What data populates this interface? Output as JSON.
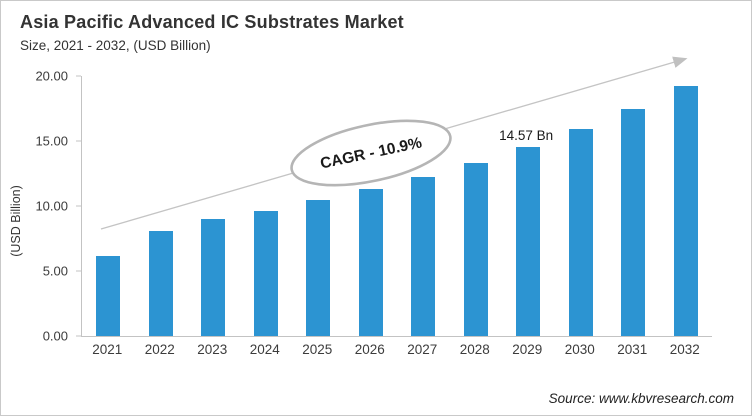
{
  "header": {
    "title": "Asia Pacific Advanced IC Substrates Market",
    "subtitle": "Size, 2021 - 2032, (USD Billion)"
  },
  "annotations": {
    "cagr": "CAGR - 10.9%"
  },
  "source": "Source: www.kbvresearch.com",
  "colors": {
    "bar": "#2C94D2",
    "axis": "#c3c3c3",
    "arrow": "#c4c4c4",
    "ellipse_stroke": "#b5b5b5",
    "text_dark": "#333333"
  },
  "chart_data": {
    "type": "bar",
    "title": "Asia Pacific Advanced IC Substrates Market Size, 2021 - 2032, (USD Billion)",
    "categories": [
      "2021",
      "2022",
      "2023",
      "2024",
      "2025",
      "2026",
      "2027",
      "2028",
      "2029",
      "2030",
      "2031",
      "2032"
    ],
    "values": [
      6.15,
      8.04,
      9.0,
      9.63,
      10.44,
      11.31,
      12.2,
      13.28,
      14.57,
      15.89,
      17.48,
      19.26
    ],
    "data_labels": {
      "2029": "14.57 Bn"
    },
    "xlabel": "",
    "ylabel": "(USD Billion)",
    "ylim": [
      0,
      20
    ],
    "yticks": [
      "0.00",
      "5.00",
      "10.00",
      "15.00",
      "20.00"
    ],
    "grid": false,
    "legend": "none",
    "bar_color": "#2C94D2",
    "annotation": "CAGR - 10.9%"
  }
}
